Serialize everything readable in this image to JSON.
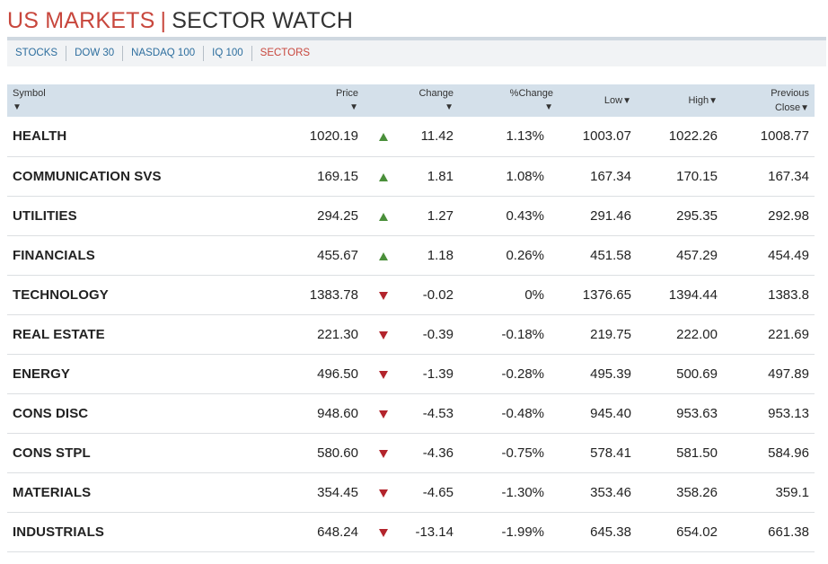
{
  "header": {
    "title_part1": "US MARKETS",
    "separator": "|",
    "title_part2": "SECTOR WATCH"
  },
  "nav": {
    "items": [
      {
        "label": "STOCKS",
        "active": false
      },
      {
        "label": "DOW 30",
        "active": false
      },
      {
        "label": "NASDAQ 100",
        "active": false
      },
      {
        "label": "IQ 100",
        "active": false
      },
      {
        "label": "SECTORS",
        "active": true
      }
    ]
  },
  "table": {
    "columns": {
      "symbol": "Symbol",
      "price": "Price",
      "change": "Change",
      "pct_change": "%Change",
      "low": "Low",
      "high": "High",
      "prev_line1": "Previous",
      "prev_line2": "Close",
      "sort_arrow": "▼"
    },
    "rows": [
      {
        "symbol": "HEALTH",
        "price": "1020.19",
        "direction": "up",
        "change": "11.42",
        "pct": "1.13%",
        "low": "1003.07",
        "high": "1022.26",
        "prev": "1008.77"
      },
      {
        "symbol": "COMMUNICATION SVS",
        "price": "169.15",
        "direction": "up",
        "change": "1.81",
        "pct": "1.08%",
        "low": "167.34",
        "high": "170.15",
        "prev": "167.34"
      },
      {
        "symbol": "UTILITIES",
        "price": "294.25",
        "direction": "up",
        "change": "1.27",
        "pct": "0.43%",
        "low": "291.46",
        "high": "295.35",
        "prev": "292.98"
      },
      {
        "symbol": "FINANCIALS",
        "price": "455.67",
        "direction": "up",
        "change": "1.18",
        "pct": "0.26%",
        "low": "451.58",
        "high": "457.29",
        "prev": "454.49"
      },
      {
        "symbol": "TECHNOLOGY",
        "price": "1383.78",
        "direction": "down",
        "change": "-0.02",
        "pct": "0%",
        "low": "1376.65",
        "high": "1394.44",
        "prev": "1383.8"
      },
      {
        "symbol": "REAL ESTATE",
        "price": "221.30",
        "direction": "down",
        "change": "-0.39",
        "pct": "-0.18%",
        "low": "219.75",
        "high": "222.00",
        "prev": "221.69"
      },
      {
        "symbol": "ENERGY",
        "price": "496.50",
        "direction": "down",
        "change": "-1.39",
        "pct": "-0.28%",
        "low": "495.39",
        "high": "500.69",
        "prev": "497.89"
      },
      {
        "symbol": "CONS DISC",
        "price": "948.60",
        "direction": "down",
        "change": "-4.53",
        "pct": "-0.48%",
        "low": "945.40",
        "high": "953.63",
        "prev": "953.13"
      },
      {
        "symbol": "CONS STPL",
        "price": "580.60",
        "direction": "down",
        "change": "-4.36",
        "pct": "-0.75%",
        "low": "578.41",
        "high": "581.50",
        "prev": "584.96"
      },
      {
        "symbol": "MATERIALS",
        "price": "354.45",
        "direction": "down",
        "change": "-4.65",
        "pct": "-1.30%",
        "low": "353.46",
        "high": "358.26",
        "prev": "359.1"
      },
      {
        "symbol": "INDUSTRIALS",
        "price": "648.24",
        "direction": "down",
        "change": "-13.14",
        "pct": "-1.99%",
        "low": "645.38",
        "high": "654.02",
        "prev": "661.38"
      }
    ]
  },
  "colors": {
    "accent_red": "#c8473d",
    "link_blue": "#2d6e9e",
    "up_green": "#4a8f3a",
    "down_red": "#b3242c",
    "header_bg": "#d4e0ea"
  }
}
